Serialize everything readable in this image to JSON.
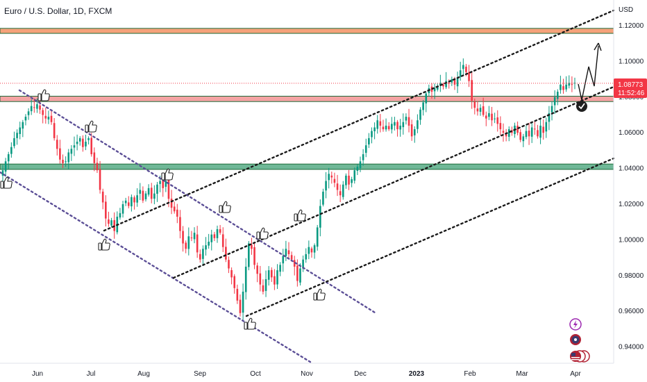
{
  "header": {
    "title": "Euro / U.S. Dollar, 1D, FXCM",
    "currency": "USD"
  },
  "price_tag": {
    "price": "1.08773",
    "countdown": "11:52:46",
    "color": "#f23645"
  },
  "colors": {
    "up": "#089981",
    "down": "#f23645",
    "zone_orange": "#f5a27a",
    "zone_red": "#f4a3a3",
    "zone_green": "#6fb897",
    "zone_border": "#1e6b3a",
    "trend": "#1a1a1a",
    "down_channel": "#5b4e96"
  },
  "icons": [
    "thumbs-up-icon",
    "check-circle-icon",
    "lightning-icon",
    "flag-icon",
    "arrow-icon"
  ],
  "chart_data": {
    "type": "candlestick",
    "x_ticks": [
      "Jun",
      "Jul",
      "Aug",
      "Sep",
      "Oct",
      "Nov",
      "Dec",
      "2023",
      "Feb",
      "Mar",
      "Apr"
    ],
    "y_ticks": [
      "1.12000",
      "1.10000",
      "1.08000",
      "1.06000",
      "1.04000",
      "1.02000",
      "1.00000",
      "0.98000",
      "0.96000",
      "0.94000"
    ],
    "ylim": [
      0.928,
      1.127
    ],
    "current_price": 1.08773,
    "zones": [
      {
        "name": "resistance-upper",
        "from": 1.1157,
        "to": 1.1185
      },
      {
        "name": "resistance-mid",
        "from": 1.0775,
        "to": 1.0805
      },
      {
        "name": "support",
        "from": 1.0395,
        "to": 1.0425
      }
    ],
    "closes": [
      1.039,
      1.044,
      1.048,
      1.052,
      1.057,
      1.06,
      1.063,
      1.066,
      1.069,
      1.072,
      1.075,
      1.074,
      1.076,
      1.073,
      1.07,
      1.068,
      1.069,
      1.066,
      1.057,
      1.051,
      1.045,
      1.043,
      1.044,
      1.049,
      1.051,
      1.053,
      1.055,
      1.057,
      1.052,
      1.055,
      1.057,
      1.048,
      1.043,
      1.039,
      1.028,
      1.021,
      1.012,
      1.009,
      1.011,
      1.005,
      1.013,
      1.015,
      1.02,
      1.022,
      1.019,
      1.024,
      1.021,
      1.025,
      1.028,
      1.022,
      1.026,
      1.029,
      1.023,
      1.026,
      1.031,
      1.033,
      1.029,
      1.033,
      1.023,
      1.018,
      1.016,
      1.013,
      1.005,
      0.998,
      0.995,
      1.002,
      1.001,
      1.004,
      0.993,
      0.989,
      0.995,
      0.997,
      0.999,
      1.003,
      1.001,
      1.006,
      1.004,
      0.996,
      0.989,
      0.984,
      0.979,
      0.973,
      0.966,
      0.959,
      0.971,
      0.985,
      0.998,
      0.995,
      0.986,
      0.981,
      0.975,
      0.971,
      0.978,
      0.983,
      0.979,
      0.975,
      0.983,
      0.986,
      0.991,
      0.995,
      0.992,
      0.989,
      0.985,
      0.977,
      0.984,
      0.989,
      0.992,
      0.996,
      0.993,
      0.997,
      1.007,
      1.019,
      1.027,
      1.033,
      1.037,
      1.035,
      1.032,
      1.028,
      1.025,
      1.031,
      1.036,
      1.031,
      1.034,
      1.039,
      1.041,
      1.044,
      1.048,
      1.053,
      1.057,
      1.061,
      1.063,
      1.067,
      1.064,
      1.062,
      1.064,
      1.062,
      1.065,
      1.066,
      1.062,
      1.064,
      1.066,
      1.069,
      1.064,
      1.058,
      1.062,
      1.067,
      1.073,
      1.077,
      1.082,
      1.085,
      1.083,
      1.085,
      1.086,
      1.088,
      1.086,
      1.089,
      1.088,
      1.09,
      1.087,
      1.091,
      1.095,
      1.098,
      1.094,
      1.089,
      1.078,
      1.074,
      1.072,
      1.074,
      1.07,
      1.068,
      1.071,
      1.067,
      1.068,
      1.065,
      1.062,
      1.06,
      1.058,
      1.062,
      1.06,
      1.064,
      1.06,
      1.056,
      1.058,
      1.061,
      1.058,
      1.063,
      1.062,
      1.058,
      1.064,
      1.06,
      1.066,
      1.071,
      1.075,
      1.08,
      1.083,
      1.087,
      1.084,
      1.087,
      1.088,
      1.087,
      1.088
    ]
  }
}
